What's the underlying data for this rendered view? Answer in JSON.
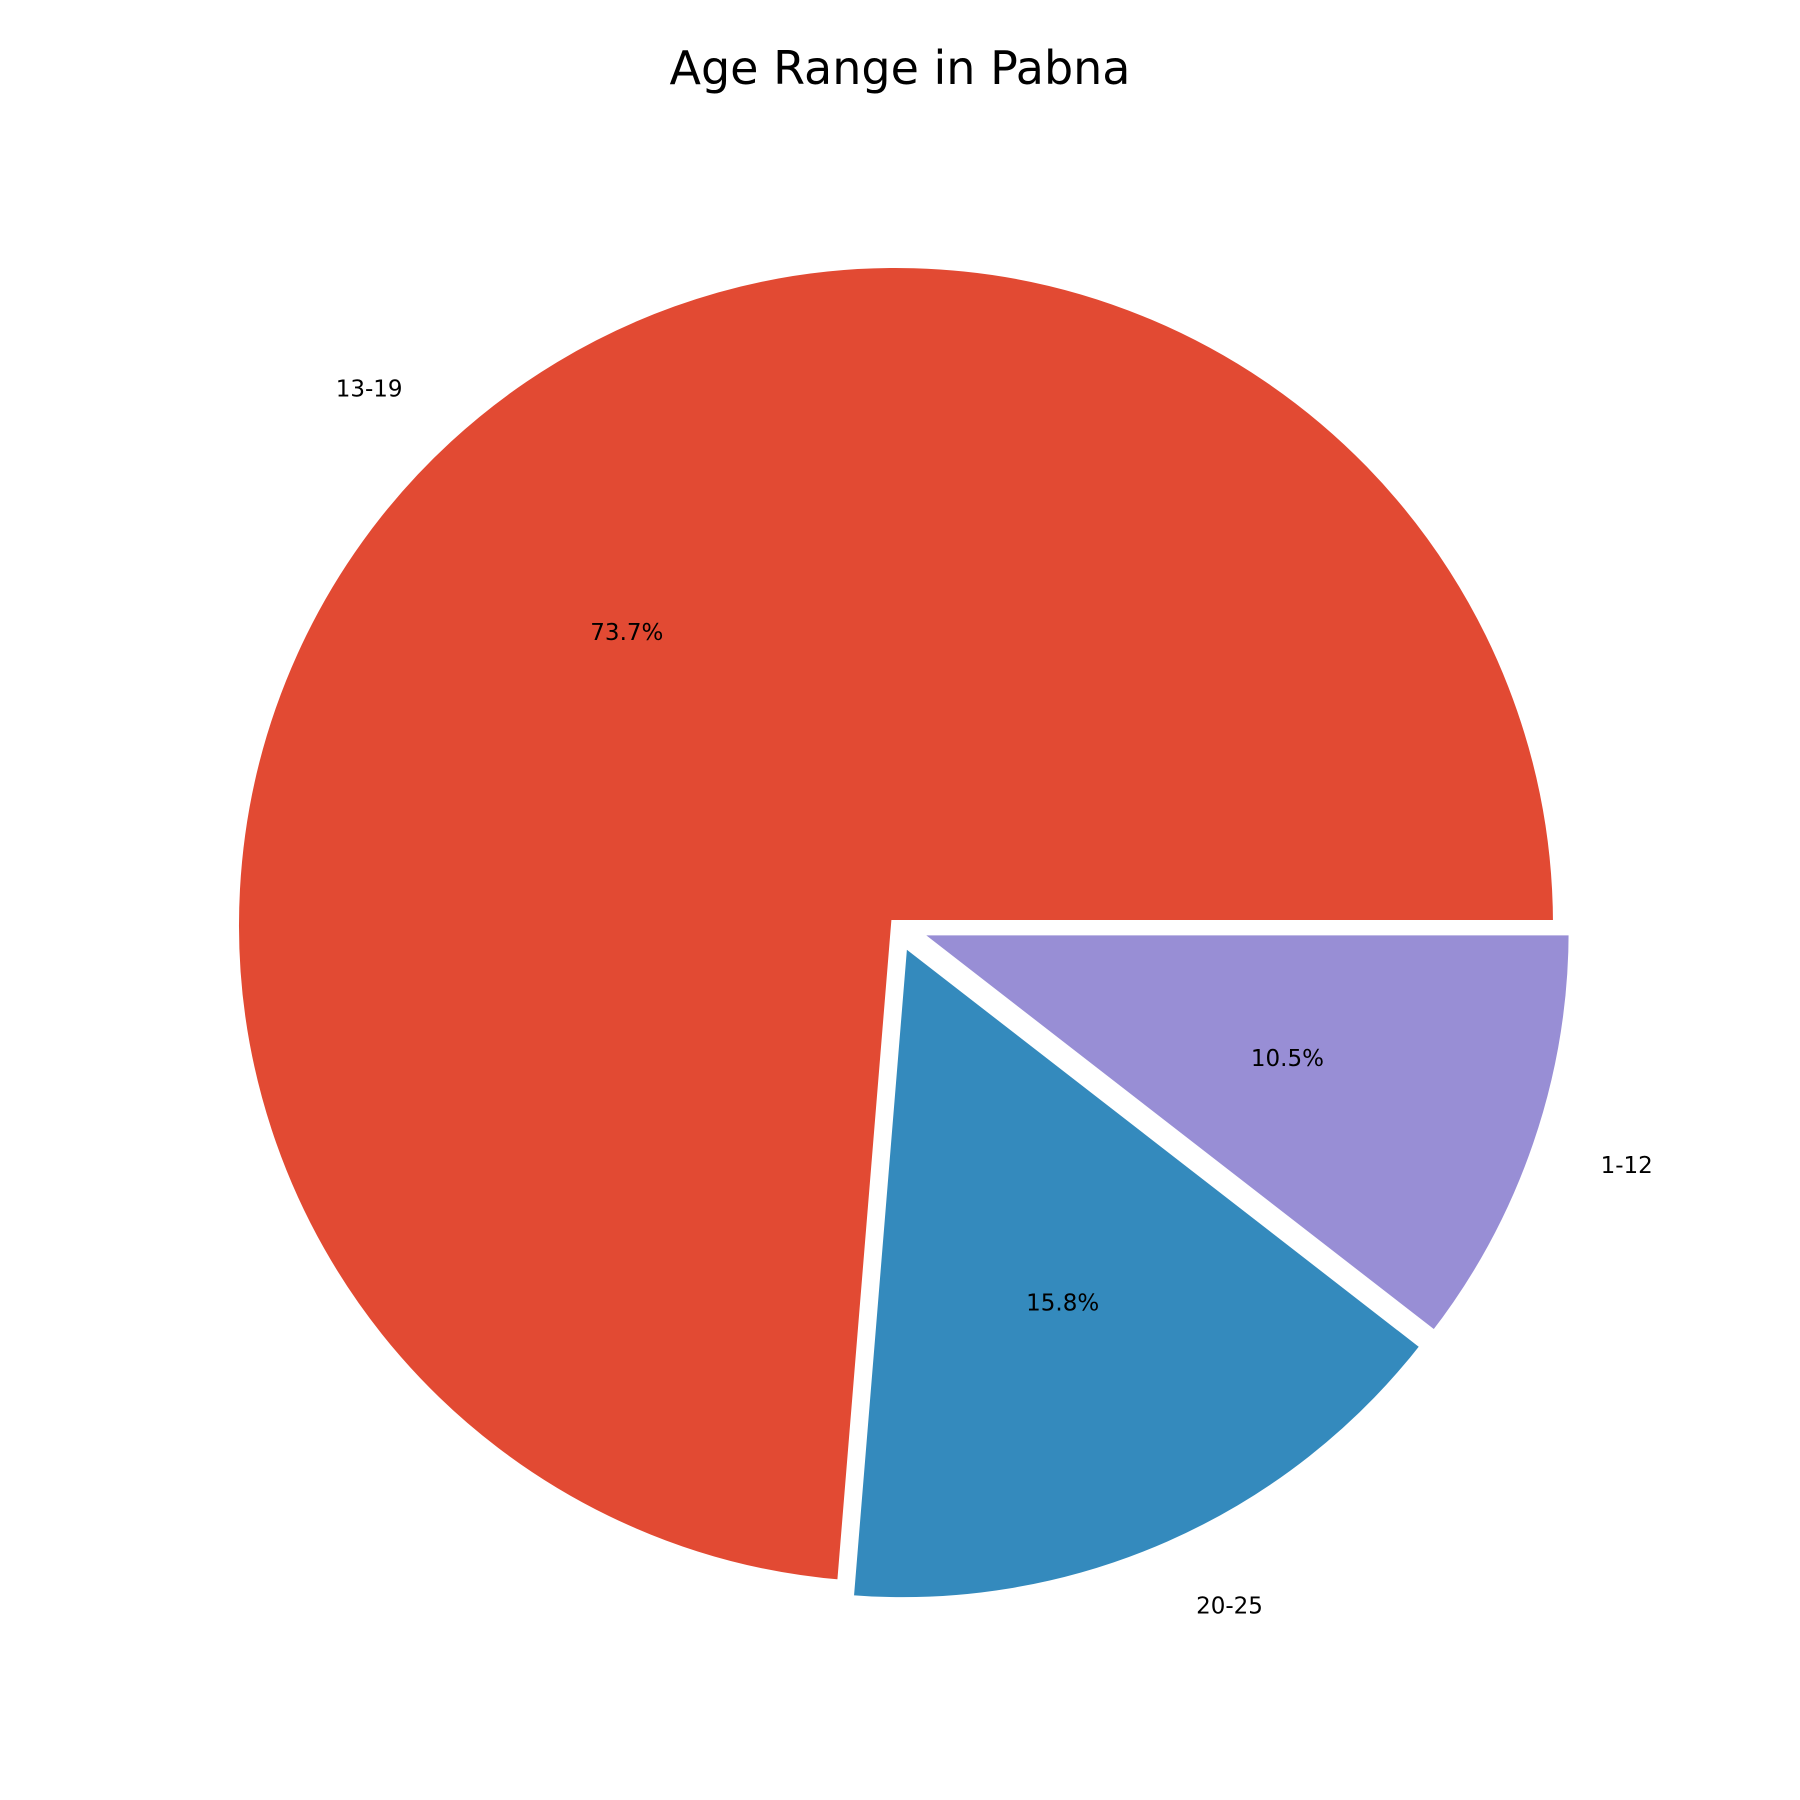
{
  "chart_data": {
    "type": "pie",
    "title": "Age Range in Pabna",
    "slices": [
      {
        "label": "13-19",
        "value": 73.7,
        "pct_label": "73.7%",
        "color": "#E24A33",
        "exploded": false
      },
      {
        "label": "20-25",
        "value": 15.8,
        "pct_label": "15.8%",
        "color": "#348ABD",
        "exploded": true
      },
      {
        "label": "1-12",
        "value": 10.5,
        "pct_label": "10.5%",
        "color": "#988ED5",
        "exploded": true
      }
    ],
    "start_angle_deg": 0,
    "direction": "counterclockwise",
    "edge_color": "#ffffff",
    "legend": "none"
  }
}
